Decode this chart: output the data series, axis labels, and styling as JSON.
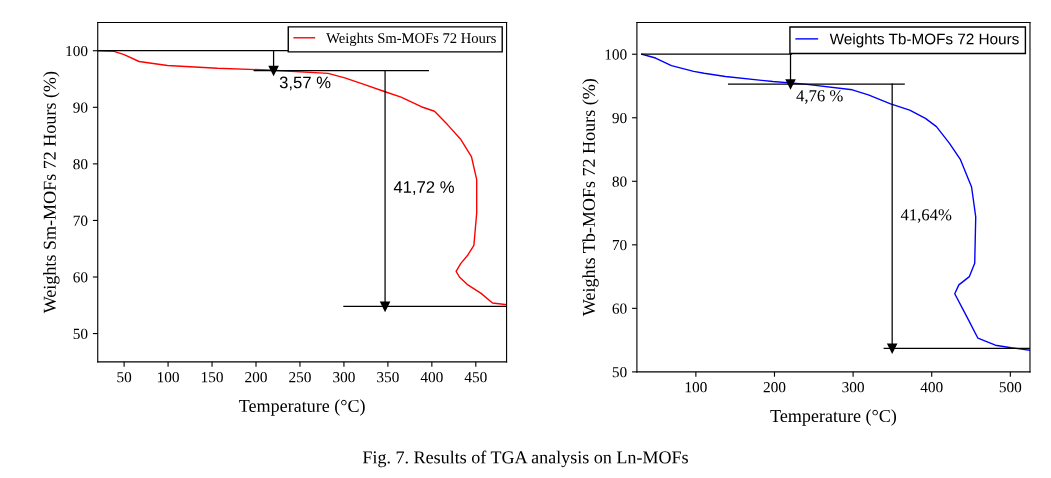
{
  "chart_data": [
    {
      "type": "line",
      "xlabel": "Temperature (°C)",
      "ylabel": "Weights Sm-MOFs 72 Hours (%)",
      "xlim": [
        20,
        485
      ],
      "ylim": [
        45,
        105
      ],
      "xticks": [
        50,
        100,
        150,
        200,
        250,
        300,
        350,
        400,
        450
      ],
      "yticks": [
        50,
        60,
        70,
        80,
        90,
        100
      ],
      "grid": false,
      "legend": "top right",
      "series": [
        {
          "name": "Weights Sm-MOFs 72 Hours",
          "color": "#ff0000",
          "x": [
            20.4,
            38.6,
            50,
            67,
            99.3,
            156,
            213,
            282,
            301,
            323.6,
            346,
            365,
            388,
            403,
            418,
            433,
            445,
            451,
            451,
            447.8,
            441,
            433,
            427.6,
            431.4,
            441,
            456,
            469,
            485
          ],
          "values": [
            100,
            99.9,
            99.3,
            98.1,
            97.4,
            96.9,
            96.6,
            96.0,
            95.2,
            94.0,
            92.8,
            91.8,
            90.1,
            89.3,
            86.9,
            84.3,
            81.3,
            77.2,
            71.3,
            65.6,
            63.9,
            62.4,
            61.0,
            60.0,
            58.6,
            57.1,
            55.4,
            55.1
          ]
        },
        {
          "type": "line",
          "color": "#000000",
          "x": [
            20,
            236
          ],
          "values": [
            100,
            100
          ]
        },
        {
          "type": "line",
          "color": "#000000",
          "x": [
            198,
            396
          ],
          "values": [
            96.5,
            96.5
          ]
        },
        {
          "type": "line",
          "color": "#000000",
          "x": [
            300,
            485
          ],
          "values": [
            54.8,
            54.8
          ]
        },
        {
          "type": "line",
          "color": "#000000",
          "marker": "triangle",
          "x": [
            220,
            220
          ],
          "values": [
            100,
            96.5
          ]
        },
        {
          "type": "line",
          "color": "#000000",
          "marker": "triangle",
          "x": [
            346.8,
            346.8
          ],
          "values": [
            96.5,
            54.8
          ]
        }
      ],
      "annotations": [
        "3,57 %",
        "41,72 %",
        "Fig. 7. Results of TGA analysis on Ln-MOFs"
      ]
    },
    {
      "type": "line",
      "xlabel": "Temperature (°C)",
      "ylabel": "Weights Tb-MOFs 72 Hours (%)",
      "xlim": [
        25,
        525
      ],
      "ylim": [
        50,
        105
      ],
      "xticks": [
        100,
        200,
        300,
        400,
        500
      ],
      "yticks": [
        50,
        60,
        70,
        80,
        90,
        100
      ],
      "grid": false,
      "legend": "top right",
      "series": [
        {
          "name": "Weights Tb-MOFs 72 Hours",
          "color": "#0000ff",
          "x": [
            31.3,
            48.7,
            68.9,
            97.2,
            110.5,
            137.6,
            198,
            238.6,
            299,
            319.4,
            347.7,
            372,
            392,
            406,
            422.4,
            436.6,
            450.7,
            456,
            454.7,
            447.9,
            434.5,
            429.3,
            444.6,
            458.8,
            481,
            501,
            525
          ],
          "values": [
            100,
            99.4,
            98.2,
            97.3,
            97.0,
            96.5,
            95.7,
            95.3,
            94.4,
            93.6,
            92.2,
            91.2,
            89.9,
            88.6,
            86.0,
            83.4,
            79.1,
            74.4,
            67.1,
            65.0,
            63.7,
            62.3,
            58.7,
            55.3,
            54.2,
            53.8,
            53.4
          ]
        },
        {
          "type": "line",
          "color": "#000000",
          "x": [
            31,
            221.6
          ],
          "values": [
            100,
            100
          ]
        },
        {
          "type": "line",
          "color": "#000000",
          "x": [
            141.6,
            365
          ],
          "values": [
            95.3,
            95.3
          ]
        },
        {
          "type": "line",
          "color": "#000000",
          "x": [
            339.6,
            525
          ],
          "values": [
            53.7,
            53.7
          ]
        },
        {
          "type": "line",
          "color": "#000000",
          "marker": "triangle",
          "x": [
            220.4,
            220.4
          ],
          "values": [
            100,
            95.3
          ]
        },
        {
          "type": "line",
          "color": "#000000",
          "marker": "triangle",
          "x": [
            349.7,
            349.7
          ],
          "values": [
            95.3,
            53.7
          ]
        }
      ],
      "annotations": [
        "4,76 %",
        "41,64%"
      ]
    }
  ]
}
